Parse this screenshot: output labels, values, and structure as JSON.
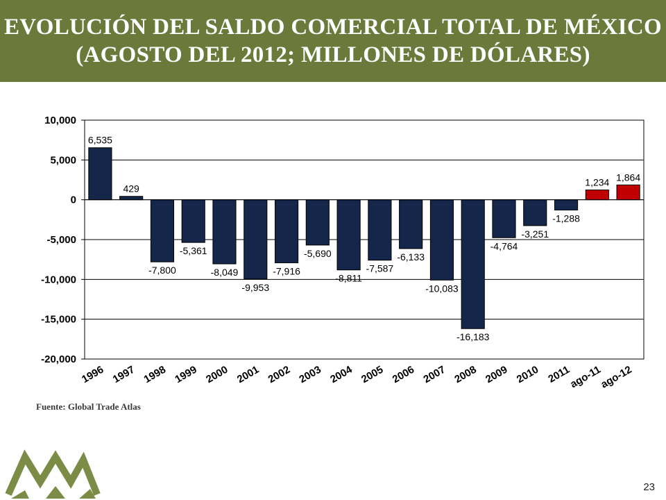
{
  "header": {
    "title_line1": "EVOLUCIÓN DEL SALDO COMERCIAL TOTAL DE MÉXICO",
    "title_line2": "(AGOSTO DEL 2012; MILLONES DE DÓLARES)"
  },
  "source": "Fuente:  Global Trade Atlas",
  "page_number": "23",
  "colors": {
    "header_bg": "#6b7a3a",
    "bar_annual": "#14264a",
    "bar_partial": "#c00000",
    "logo_green": "#7c8b46"
  },
  "logo": {
    "icon": "mountains-logo-icon"
  },
  "chart_data": {
    "type": "bar",
    "title": "EVOLUCIÓN DEL SALDO COMERCIAL TOTAL DE MÉXICO (AGOSTO DEL 2012; MILLONES DE DÓLARES)",
    "xlabel": "",
    "ylabel": "",
    "categories": [
      "1996",
      "1997",
      "1998",
      "1999",
      "2000",
      "2001",
      "2002",
      "2003",
      "2004",
      "2005",
      "2006",
      "2007",
      "2008",
      "2009",
      "2010",
      "2011",
      "ago-11",
      "ago-12"
    ],
    "values": [
      6535,
      429,
      -7800,
      -5361,
      -8049,
      -9953,
      -7916,
      -5690,
      -8811,
      -7587,
      -6133,
      -10083,
      -16183,
      -4764,
      -3251,
      -1288,
      1234,
      1864
    ],
    "data_labels": [
      "6,535",
      "429",
      "-7,800",
      "-5,361",
      "-8,049",
      "-9,953",
      "-7,916",
      "-5,690",
      "-8,811",
      "-7,587",
      "-6,133",
      "-10,083",
      "-16,183",
      "-4,764",
      "-3,251",
      "-1,288",
      "1,234",
      "1,864"
    ],
    "highlighted_categories": [
      "ago-11",
      "ago-12"
    ],
    "ylim": [
      -20000,
      10000
    ],
    "yticks": [
      -20000,
      -15000,
      -10000,
      -5000,
      0,
      5000,
      10000
    ],
    "ytick_labels": [
      "-20,000",
      "-15,000",
      "-10,000",
      "-5,000",
      "0",
      "5,000",
      "10,000"
    ],
    "grid": true,
    "legend": "none"
  }
}
